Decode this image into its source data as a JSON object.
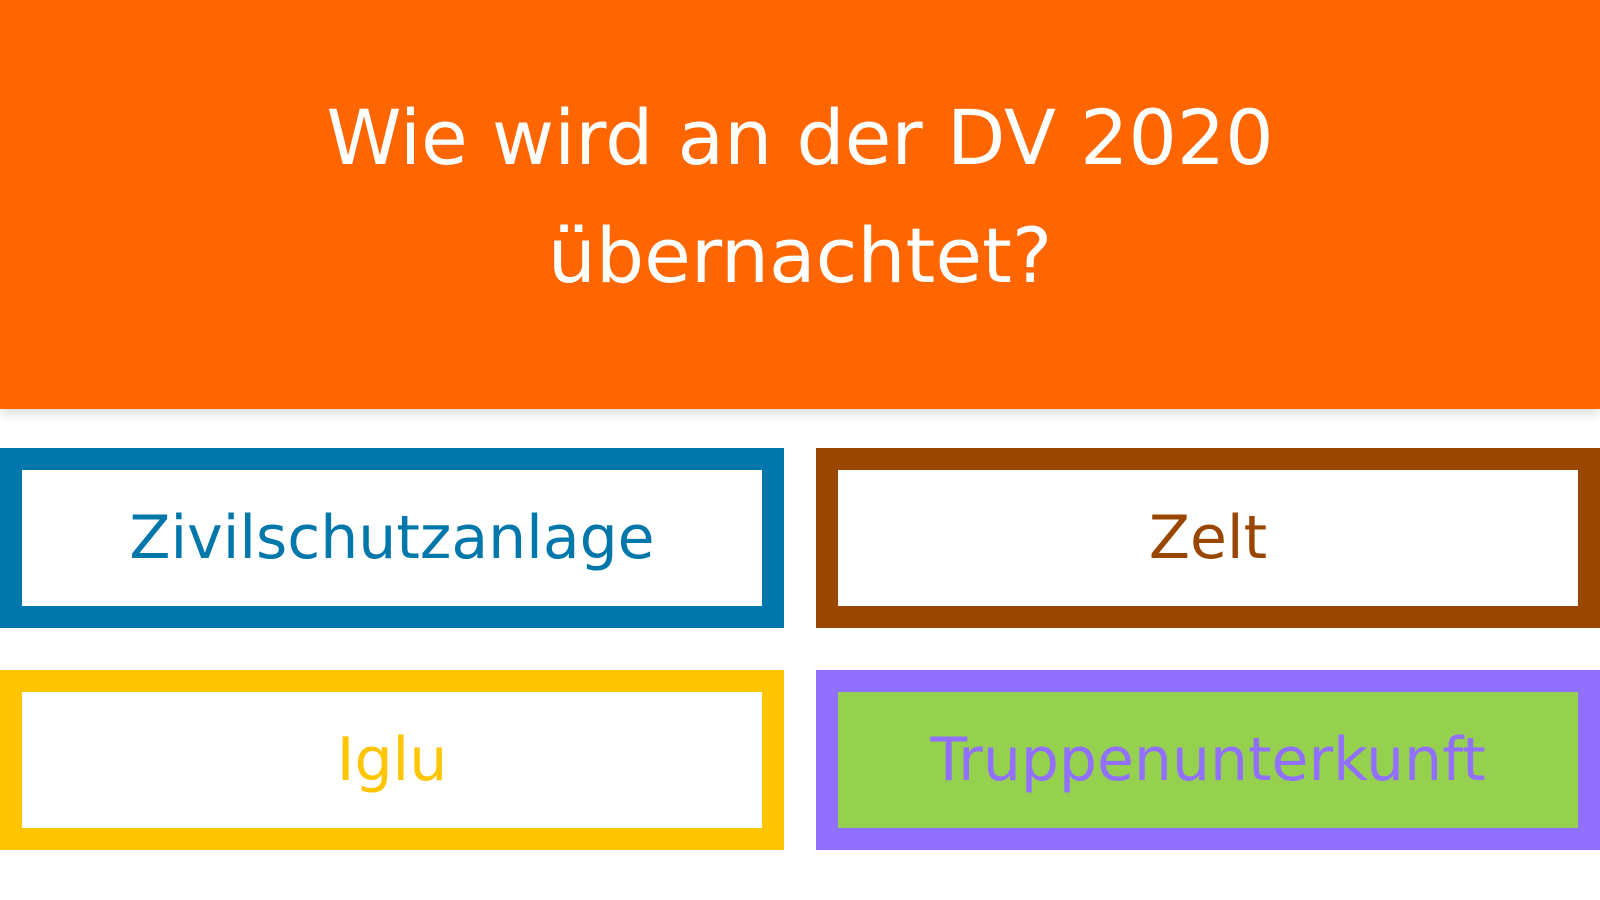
{
  "question": "Wie wird an der DV 2020 übernachtet?",
  "answers": [
    {
      "label": "Zivilschutzanlage",
      "color": "#0077ab",
      "background": "#ffffff"
    },
    {
      "label": "Zelt",
      "color": "#994700",
      "background": "#ffffff"
    },
    {
      "label": "Iglu",
      "color": "#ffc500",
      "background": "#ffffff"
    },
    {
      "label": "Truppenunterkunft",
      "color": "#9170ff",
      "background": "#95d04f"
    }
  ],
  "colors": {
    "header": "#ff6600"
  }
}
